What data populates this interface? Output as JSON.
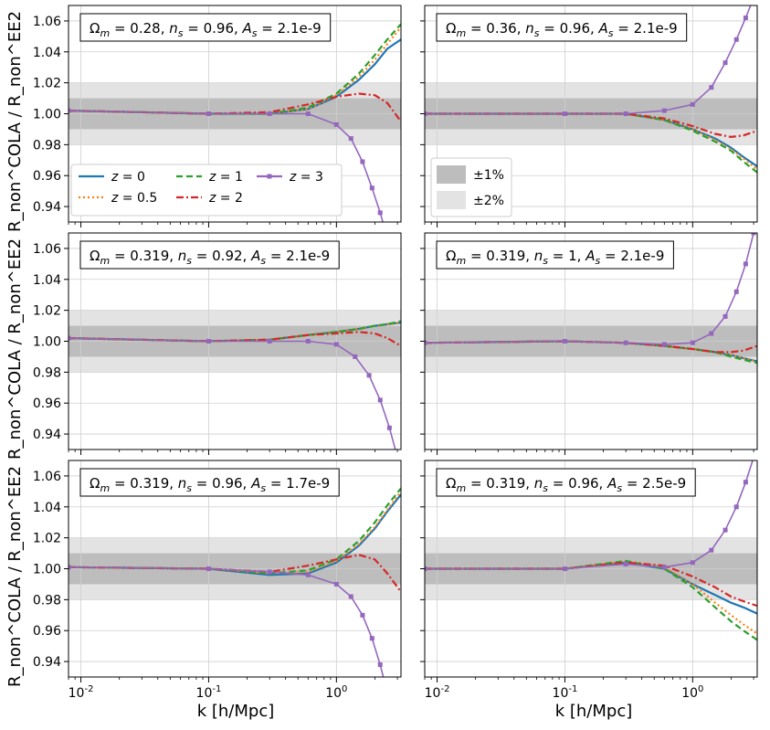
{
  "figure": {
    "x_label": "k [h/Mpc]",
    "y_label": "R_non^COLA / R_non^EE2",
    "x_ticks": [
      "10^-2",
      "10^-1",
      "10^0"
    ],
    "y_ticks": [
      "0.94",
      "0.96",
      "0.98",
      "1.00",
      "1.02",
      "1.04",
      "1.06"
    ],
    "band_legend": [
      {
        "label": "±1%",
        "color": "#bdbdbd"
      },
      {
        "label": "±2%",
        "color": "#e3e3e3"
      }
    ],
    "series_styles": [
      {
        "name": "z = 0",
        "color": "#1f77b4",
        "dash": "solid"
      },
      {
        "name": "z = 0.5",
        "color": "#ff7f0e",
        "dash": "dotted"
      },
      {
        "name": "z = 1",
        "color": "#2ca02c",
        "dash": "dashed"
      },
      {
        "name": "z = 2",
        "color": "#d62728",
        "dash": "dashdot"
      },
      {
        "name": "z = 3",
        "color": "#9467bd",
        "dash": "solid",
        "marker": "square"
      }
    ]
  },
  "chart_data": [
    {
      "type": "line",
      "panel": "top-left",
      "log_x": true,
      "xlim": [
        0.008,
        3.2
      ],
      "ylim": [
        0.93,
        1.07
      ],
      "grid": true,
      "params": {
        "omega_m": "0.28",
        "n_s": "0.96",
        "A_s": "2.1e-9"
      },
      "legend": "lines",
      "series": [
        {
          "name": "z = 0",
          "x": [
            0.008,
            0.1,
            0.3,
            0.6,
            1.0,
            1.5,
            2.0,
            2.5,
            3.2
          ],
          "y": [
            1.002,
            1.0,
            1.0,
            1.003,
            1.011,
            1.022,
            1.032,
            1.042,
            1.048
          ]
        },
        {
          "name": "z = 0.5",
          "x": [
            0.008,
            0.1,
            0.3,
            0.6,
            1.0,
            1.5,
            2.0,
            2.5,
            3.2
          ],
          "y": [
            1.002,
            1.0,
            1.0,
            1.003,
            1.012,
            1.024,
            1.035,
            1.045,
            1.056
          ]
        },
        {
          "name": "z = 1",
          "x": [
            0.008,
            0.1,
            0.3,
            0.6,
            1.0,
            1.5,
            2.0,
            2.5,
            3.2
          ],
          "y": [
            1.002,
            1.0,
            1.0,
            1.004,
            1.013,
            1.026,
            1.038,
            1.048,
            1.058
          ]
        },
        {
          "name": "z = 2",
          "x": [
            0.008,
            0.1,
            0.3,
            0.6,
            1.0,
            1.5,
            2.0,
            2.5,
            3.2
          ],
          "y": [
            1.002,
            1.0,
            1.001,
            1.006,
            1.011,
            1.013,
            1.012,
            1.007,
            0.995
          ]
        },
        {
          "name": "z = 3",
          "x": [
            0.008,
            0.1,
            0.3,
            0.6,
            1.0,
            1.3,
            1.6,
            1.9,
            2.2,
            2.5
          ],
          "y": [
            1.002,
            1.0,
            1.0,
            1.0,
            0.993,
            0.984,
            0.969,
            0.952,
            0.936,
            0.92
          ]
        }
      ]
    },
    {
      "type": "line",
      "panel": "top-right",
      "log_x": true,
      "xlim": [
        0.008,
        3.2
      ],
      "ylim": [
        0.93,
        1.07
      ],
      "grid": true,
      "params": {
        "omega_m": "0.36",
        "n_s": "0.96",
        "A_s": "2.1e-9"
      },
      "legend": "bands",
      "series": [
        {
          "name": "z = 0",
          "x": [
            0.008,
            0.1,
            0.3,
            0.6,
            1.0,
            1.5,
            2.0,
            2.5,
            3.2
          ],
          "y": [
            1.0,
            1.0,
            1.0,
            0.996,
            0.99,
            0.984,
            0.978,
            0.972,
            0.966
          ]
        },
        {
          "name": "z = 0.5",
          "x": [
            0.008,
            0.1,
            0.3,
            0.6,
            1.0,
            1.5,
            2.0,
            2.5,
            3.2
          ],
          "y": [
            1.0,
            1.0,
            1.0,
            0.996,
            0.99,
            0.983,
            0.977,
            0.971,
            0.964
          ]
        },
        {
          "name": "z = 1",
          "x": [
            0.008,
            0.1,
            0.3,
            0.6,
            1.0,
            1.5,
            2.0,
            2.5,
            3.2
          ],
          "y": [
            1.0,
            1.0,
            1.0,
            0.996,
            0.989,
            0.982,
            0.976,
            0.969,
            0.962
          ]
        },
        {
          "name": "z = 2",
          "x": [
            0.008,
            0.1,
            0.3,
            0.6,
            1.0,
            1.5,
            2.0,
            2.5,
            3.2
          ],
          "y": [
            1.0,
            1.0,
            1.0,
            0.997,
            0.992,
            0.987,
            0.985,
            0.986,
            0.989
          ]
        },
        {
          "name": "z = 3",
          "x": [
            0.008,
            0.1,
            0.3,
            0.6,
            1.0,
            1.4,
            1.8,
            2.2,
            2.6,
            3.0
          ],
          "y": [
            1.0,
            1.0,
            1.0,
            1.002,
            1.006,
            1.017,
            1.033,
            1.048,
            1.062,
            1.075
          ]
        }
      ]
    },
    {
      "type": "line",
      "panel": "middle-left",
      "log_x": true,
      "xlim": [
        0.008,
        3.2
      ],
      "ylim": [
        0.93,
        1.07
      ],
      "grid": true,
      "params": {
        "omega_m": "0.319",
        "n_s": "0.92",
        "A_s": "2.1e-9"
      },
      "series": [
        {
          "name": "z = 0",
          "x": [
            0.008,
            0.1,
            0.3,
            0.6,
            1.0,
            1.5,
            2.0,
            2.5,
            3.2
          ],
          "y": [
            1.002,
            1.0,
            1.001,
            1.004,
            1.006,
            1.008,
            1.01,
            1.011,
            1.012
          ]
        },
        {
          "name": "z = 0.5",
          "x": [
            0.008,
            0.1,
            0.3,
            0.6,
            1.0,
            1.5,
            2.0,
            2.5,
            3.2
          ],
          "y": [
            1.002,
            1.0,
            1.001,
            1.004,
            1.006,
            1.008,
            1.01,
            1.011,
            1.012
          ]
        },
        {
          "name": "z = 1",
          "x": [
            0.008,
            0.1,
            0.3,
            0.6,
            1.0,
            1.5,
            2.0,
            2.5,
            3.2
          ],
          "y": [
            1.002,
            1.0,
            1.001,
            1.004,
            1.006,
            1.008,
            1.01,
            1.011,
            1.013
          ]
        },
        {
          "name": "z = 2",
          "x": [
            0.008,
            0.1,
            0.3,
            0.6,
            1.0,
            1.5,
            2.0,
            2.5,
            3.2
          ],
          "y": [
            1.002,
            1.0,
            1.001,
            1.004,
            1.005,
            1.006,
            1.005,
            1.002,
            0.997
          ]
        },
        {
          "name": "z = 3",
          "x": [
            0.008,
            0.1,
            0.3,
            0.6,
            1.0,
            1.4,
            1.8,
            2.2,
            2.6,
            3.0
          ],
          "y": [
            1.002,
            1.0,
            1.0,
            1.0,
            0.998,
            0.99,
            0.978,
            0.962,
            0.944,
            0.925
          ]
        }
      ]
    },
    {
      "type": "line",
      "panel": "middle-right",
      "log_x": true,
      "xlim": [
        0.008,
        3.2
      ],
      "ylim": [
        0.93,
        1.07
      ],
      "grid": true,
      "params": {
        "omega_m": "0.319",
        "n_s": "1",
        "A_s": "2.1e-9"
      },
      "series": [
        {
          "name": "z = 0",
          "x": [
            0.008,
            0.1,
            0.3,
            0.6,
            1.0,
            1.5,
            2.0,
            2.5,
            3.2
          ],
          "y": [
            0.999,
            1.0,
            0.999,
            0.997,
            0.995,
            0.993,
            0.991,
            0.989,
            0.987
          ]
        },
        {
          "name": "z = 0.5",
          "x": [
            0.008,
            0.1,
            0.3,
            0.6,
            1.0,
            1.5,
            2.0,
            2.5,
            3.2
          ],
          "y": [
            0.999,
            1.0,
            0.999,
            0.997,
            0.995,
            0.993,
            0.991,
            0.989,
            0.987
          ]
        },
        {
          "name": "z = 1",
          "x": [
            0.008,
            0.1,
            0.3,
            0.6,
            1.0,
            1.5,
            2.0,
            2.5,
            3.2
          ],
          "y": [
            0.999,
            1.0,
            0.999,
            0.997,
            0.995,
            0.993,
            0.99,
            0.988,
            0.986
          ]
        },
        {
          "name": "z = 2",
          "x": [
            0.008,
            0.1,
            0.3,
            0.6,
            1.0,
            1.5,
            2.0,
            2.5,
            3.2
          ],
          "y": [
            0.999,
            1.0,
            0.999,
            0.997,
            0.995,
            0.993,
            0.993,
            0.994,
            0.997
          ]
        },
        {
          "name": "z = 3",
          "x": [
            0.008,
            0.1,
            0.3,
            0.6,
            1.0,
            1.4,
            1.8,
            2.2,
            2.6,
            3.0
          ],
          "y": [
            0.999,
            1.0,
            0.999,
            0.998,
            0.999,
            1.005,
            1.016,
            1.032,
            1.05,
            1.07
          ]
        }
      ]
    },
    {
      "type": "line",
      "panel": "bottom-left",
      "log_x": true,
      "xlim": [
        0.008,
        3.2
      ],
      "ylim": [
        0.93,
        1.07
      ],
      "grid": true,
      "params": {
        "omega_m": "0.319",
        "n_s": "0.96",
        "A_s": "1.7e-9"
      },
      "series": [
        {
          "name": "z = 0",
          "x": [
            0.008,
            0.1,
            0.3,
            0.6,
            1.0,
            1.5,
            2.0,
            2.5,
            3.2
          ],
          "y": [
            1.001,
            1.0,
            0.996,
            0.997,
            1.004,
            1.015,
            1.026,
            1.037,
            1.048
          ]
        },
        {
          "name": "z = 0.5",
          "x": [
            0.008,
            0.1,
            0.3,
            0.6,
            1.0,
            1.5,
            2.0,
            2.5,
            3.2
          ],
          "y": [
            1.001,
            1.0,
            0.997,
            0.998,
            1.005,
            1.016,
            1.027,
            1.038,
            1.05
          ]
        },
        {
          "name": "z = 1",
          "x": [
            0.008,
            0.1,
            0.3,
            0.6,
            1.0,
            1.5,
            2.0,
            2.5,
            3.2
          ],
          "y": [
            1.001,
            1.0,
            0.997,
            0.999,
            1.006,
            1.018,
            1.03,
            1.041,
            1.052
          ]
        },
        {
          "name": "z = 2",
          "x": [
            0.008,
            0.1,
            0.3,
            0.6,
            1.0,
            1.5,
            2.0,
            2.5,
            3.2
          ],
          "y": [
            1.001,
            1.0,
            0.998,
            1.002,
            1.006,
            1.009,
            1.006,
            0.997,
            0.985
          ]
        },
        {
          "name": "z = 3",
          "x": [
            0.008,
            0.1,
            0.3,
            0.6,
            1.0,
            1.3,
            1.6,
            1.9,
            2.2,
            2.5
          ],
          "y": [
            1.001,
            1.0,
            0.998,
            0.996,
            0.99,
            0.982,
            0.97,
            0.955,
            0.938,
            0.92
          ]
        }
      ]
    },
    {
      "type": "line",
      "panel": "bottom-right",
      "log_x": true,
      "xlim": [
        0.008,
        3.2
      ],
      "ylim": [
        0.93,
        1.07
      ],
      "grid": true,
      "params": {
        "omega_m": "0.319",
        "n_s": "0.96",
        "A_s": "2.5e-9"
      },
      "series": [
        {
          "name": "z = 0",
          "x": [
            0.008,
            0.1,
            0.3,
            0.6,
            1.0,
            1.5,
            2.0,
            2.5,
            3.2
          ],
          "y": [
            1.0,
            1.0,
            1.004,
            1.0,
            0.99,
            0.983,
            0.978,
            0.975,
            0.971
          ]
        },
        {
          "name": "z = 0.5",
          "x": [
            0.008,
            0.1,
            0.3,
            0.6,
            1.0,
            1.5,
            2.0,
            2.5,
            3.2
          ],
          "y": [
            1.0,
            1.0,
            1.005,
            1.001,
            0.99,
            0.978,
            0.97,
            0.964,
            0.958
          ]
        },
        {
          "name": "z = 1",
          "x": [
            0.008,
            0.1,
            0.3,
            0.6,
            1.0,
            1.5,
            2.0,
            2.5,
            3.2
          ],
          "y": [
            1.0,
            1.0,
            1.005,
            1.0,
            0.988,
            0.975,
            0.966,
            0.96,
            0.954
          ]
        },
        {
          "name": "z = 2",
          "x": [
            0.008,
            0.1,
            0.3,
            0.6,
            1.0,
            1.5,
            2.0,
            2.5,
            3.2
          ],
          "y": [
            1.0,
            1.0,
            1.004,
            1.002,
            0.995,
            0.988,
            0.982,
            0.979,
            0.976
          ]
        },
        {
          "name": "z = 3",
          "x": [
            0.008,
            0.1,
            0.3,
            0.6,
            1.0,
            1.4,
            1.8,
            2.2,
            2.6,
            3.0
          ],
          "y": [
            1.0,
            1.0,
            1.003,
            1.001,
            1.004,
            1.012,
            1.025,
            1.04,
            1.056,
            1.072
          ]
        }
      ]
    }
  ]
}
